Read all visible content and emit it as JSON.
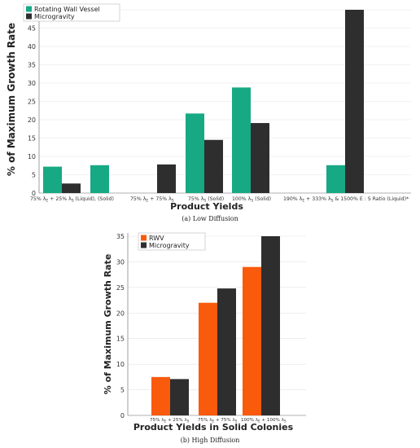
{
  "colors": {
    "series_a": "#17a884",
    "series_b": "#2e2e2e",
    "series_c": "#fa5a0c",
    "grid": "#e3e3e3",
    "axis": "#888888"
  },
  "chart_data": [
    {
      "type": "bar",
      "caption": "(a) Low Diffusion",
      "xlabel": "Product Yields",
      "ylabel": "% of Maximum Growth Rate",
      "ylim": [
        0,
        50
      ],
      "yticks": [
        0,
        5,
        10,
        15,
        20,
        25,
        30,
        35,
        40,
        45,
        50
      ],
      "grid": true,
      "legend_position": "top-left",
      "categories": [
        "75% λE + 25% λS (Liquid), (Solid)",
        "75% λE + 75% λS",
        "75% λS (Solid)",
        "100% λS (Solid)",
        "190% λE + 333% λS & 1500% E : S Ratio (Liquid)*"
      ],
      "series": [
        {
          "name": "Rotating Wall Vessel",
          "values": [
            [
              7.2,
              7.6
            ],
            [
              null
            ],
            [
              21.7
            ],
            [
              28.8
            ],
            [
              7.6
            ]
          ]
        },
        {
          "name": "Microgravity",
          "values": [
            [
              2.6,
              null
            ],
            [
              7.8
            ],
            [
              14.5
            ],
            [
              19.1
            ],
            [
              50.0
            ]
          ]
        }
      ]
    },
    {
      "type": "bar",
      "caption": "(b) High Diffusion",
      "xlabel": "Product Yields in Solid Colonies",
      "ylabel": "% of Maximum Growth Rate",
      "ylim": [
        0,
        35
      ],
      "yticks": [
        0,
        5,
        10,
        15,
        20,
        25,
        30,
        35
      ],
      "grid": true,
      "legend_position": "top-left",
      "categories": [
        "75% λE + 25% λS",
        "75% λE + 75% λS",
        "100% λE + 100% λS"
      ],
      "series": [
        {
          "name": "RWV",
          "values": [
            7.5,
            22.0,
            29.0
          ]
        },
        {
          "name": "Microgravity",
          "values": [
            7.1,
            24.8,
            35.0
          ]
        }
      ]
    }
  ]
}
